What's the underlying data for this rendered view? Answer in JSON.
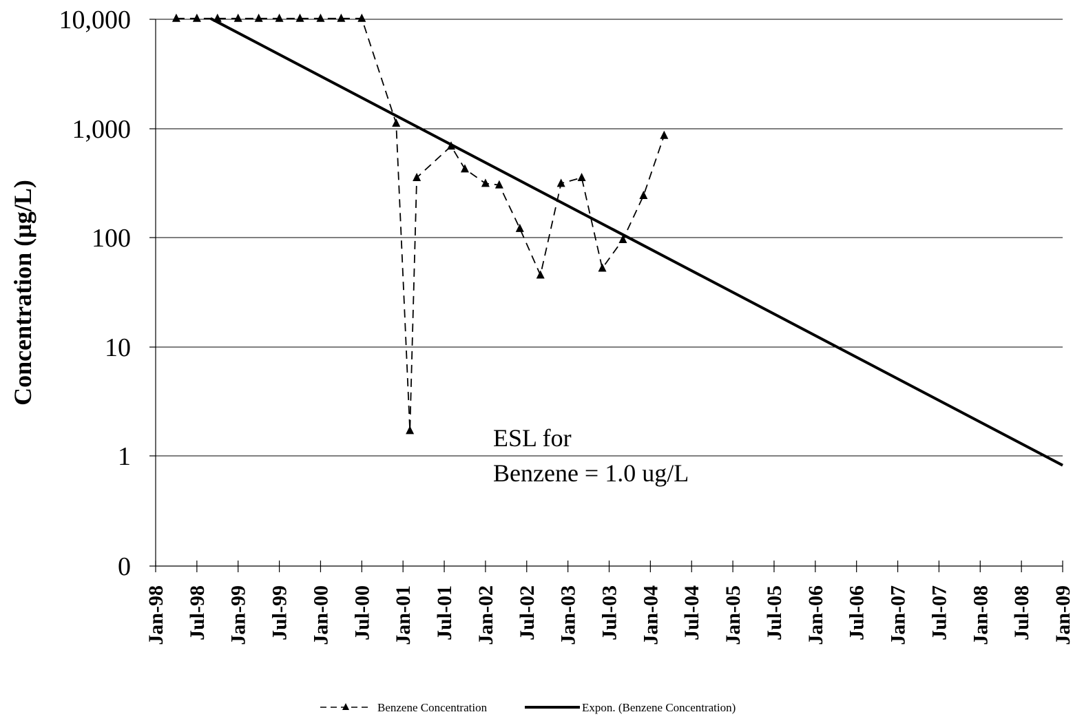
{
  "chart_data": {
    "type": "line",
    "ylabel": "Concentration (µg/L)",
    "xlabel": "",
    "y_scale": "log",
    "y_ticks": [
      {
        "value": 0,
        "label": "0"
      },
      {
        "value": 1,
        "label": "1"
      },
      {
        "value": 10,
        "label": "10"
      },
      {
        "value": 100,
        "label": "100"
      },
      {
        "value": 1000,
        "label": "1,000"
      },
      {
        "value": 10000,
        "label": "10,000"
      }
    ],
    "x_ticks": [
      "Jan-98",
      "Jul-98",
      "Jan-99",
      "Jul-99",
      "Jan-00",
      "Jul-00",
      "Jan-01",
      "Jul-01",
      "Jan-02",
      "Jul-02",
      "Jan-03",
      "Jul-03",
      "Jan-04",
      "Jul-04",
      "Jan-05",
      "Jul-05",
      "Jan-06",
      "Jul-06",
      "Jan-07",
      "Jul-07",
      "Jan-08",
      "Jul-08",
      "Jan-09"
    ],
    "xlim": [
      "1998-01",
      "2009-01"
    ],
    "grid": "horizontal",
    "legend_position": "bottom",
    "series": [
      {
        "name": "Benzene Concentration",
        "style": "dashed-triangle",
        "color": "#000000",
        "x": [
          "1998-04",
          "1998-07",
          "1998-10",
          "1999-01",
          "1999-04",
          "1999-07",
          "1999-10",
          "2000-01",
          "2000-04",
          "2000-07",
          "2000-12",
          "2001-02",
          "2001-03",
          "2001-08",
          "2001-10",
          "2002-01",
          "2002-03",
          "2002-06",
          "2002-09",
          "2002-12",
          "2003-03",
          "2003-06",
          "2003-09",
          "2003-12",
          "2004-03"
        ],
        "values": [
          10000,
          10000,
          10000,
          10000,
          10000,
          10000,
          10000,
          10000,
          10000,
          10000,
          1100,
          1.7,
          350,
          680,
          420,
          310,
          300,
          120,
          45,
          310,
          350,
          52,
          95,
          240,
          850
        ]
      },
      {
        "name": "Expon. (Benzene Concentration)",
        "style": "solid",
        "color": "#000000",
        "x": [
          "1998-09",
          "2009-01"
        ],
        "values": [
          10000,
          0.82
        ]
      }
    ],
    "annotations": [
      "ESL for",
      "Benzene = 1.0 ug/L"
    ]
  }
}
